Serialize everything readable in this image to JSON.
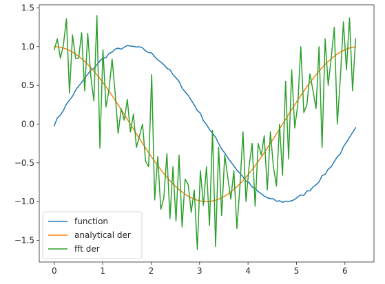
{
  "chart_data": {
    "type": "line",
    "title": "",
    "xlabel": "",
    "ylabel": "",
    "xlim": [
      -0.31,
      6.6
    ],
    "ylim": [
      -1.78,
      1.54
    ],
    "xticks": [
      0,
      1,
      2,
      3,
      4,
      5,
      6
    ],
    "yticks": [
      -1.5,
      -1.0,
      -0.5,
      0.0,
      0.5,
      1.0,
      1.5
    ],
    "ytick_labels": [
      "−1.5",
      "−1.0",
      "−0.5",
      "0.0",
      "0.5",
      "1.0",
      "1.5"
    ],
    "grid": false,
    "legend": "lower-left",
    "noise_seed": 7,
    "series": [
      {
        "name": "function",
        "color": "#1f77b4",
        "kind": "sin_noisy",
        "n": 100,
        "x_end": 6.22,
        "noise": 0.02
      },
      {
        "name": "analytical der",
        "color": "#ff7f0e",
        "kind": "cos",
        "n": 100,
        "x_end": 6.22
      },
      {
        "name": "fft der",
        "color": "#2ca02c",
        "kind": "cos_noisy",
        "n": 100,
        "x_end": 6.22,
        "x": [
          0.0,
          0.063,
          0.126,
          0.188,
          0.251,
          0.314,
          0.377,
          0.44,
          0.503,
          0.565,
          0.628,
          0.691,
          0.754,
          0.817,
          0.88,
          0.942,
          1.005,
          1.068,
          1.131,
          1.194,
          1.257,
          1.319,
          1.382,
          1.445,
          1.508,
          1.571,
          1.634,
          1.696,
          1.759,
          1.822,
          1.885,
          1.948,
          2.011,
          2.073,
          2.136,
          2.199,
          2.262,
          2.325,
          2.388,
          2.45,
          2.513,
          2.576,
          2.639,
          2.702,
          2.765,
          2.827,
          2.89,
          2.953,
          3.016,
          3.079,
          3.142,
          3.204,
          3.267,
          3.33,
          3.393,
          3.456,
          3.519,
          3.581,
          3.644,
          3.707,
          3.77,
          3.833,
          3.896,
          3.958,
          4.021,
          4.084,
          4.147,
          4.21,
          4.273,
          4.335,
          4.398,
          4.461,
          4.524,
          4.587,
          4.65,
          4.712,
          4.775,
          4.838,
          4.901,
          4.964,
          5.027,
          5.089,
          5.152,
          5.215,
          5.278,
          5.341,
          5.404,
          5.466,
          5.529,
          5.592,
          5.655,
          5.718,
          5.781,
          5.843,
          5.906,
          5.969,
          6.032,
          6.095,
          6.158,
          6.22
        ],
        "y": [
          0.96,
          1.1,
          0.85,
          1.02,
          1.36,
          0.4,
          1.15,
          0.85,
          0.85,
          1.18,
          0.43,
          1.17,
          0.62,
          0.3,
          1.4,
          -0.31,
          0.96,
          0.22,
          0.45,
          0.84,
          0.4,
          -0.12,
          0.2,
          0.05,
          0.32,
          -0.1,
          0.13,
          -0.3,
          -0.15,
          0.0,
          -0.48,
          -0.55,
          0.64,
          -0.98,
          -0.42,
          -1.1,
          -0.95,
          -0.38,
          -1.22,
          -0.55,
          -1.25,
          -0.4,
          -1.33,
          -0.71,
          -0.78,
          -1.14,
          -0.85,
          -1.62,
          -0.6,
          -1.05,
          -0.55,
          -1.31,
          -0.08,
          -1.58,
          -0.3,
          -1.18,
          -0.4,
          -0.68,
          -0.97,
          -0.6,
          -1.35,
          -0.8,
          -0.1,
          -1.0,
          -0.55,
          -0.25,
          -1.06,
          -0.25,
          -0.4,
          -0.15,
          -0.85,
          -0.1,
          -0.55,
          -0.8,
          0.0,
          -0.66,
          0.55,
          -0.45,
          0.7,
          -0.05,
          0.25,
          1.0,
          0.15,
          0.25,
          0.65,
          0.43,
          0.2,
          1.0,
          -0.3,
          1.1,
          0.5,
          0.86,
          1.25,
          0.0,
          0.6,
          1.32,
          0.7,
          1.37,
          0.43,
          1.1
        ]
      }
    ]
  }
}
